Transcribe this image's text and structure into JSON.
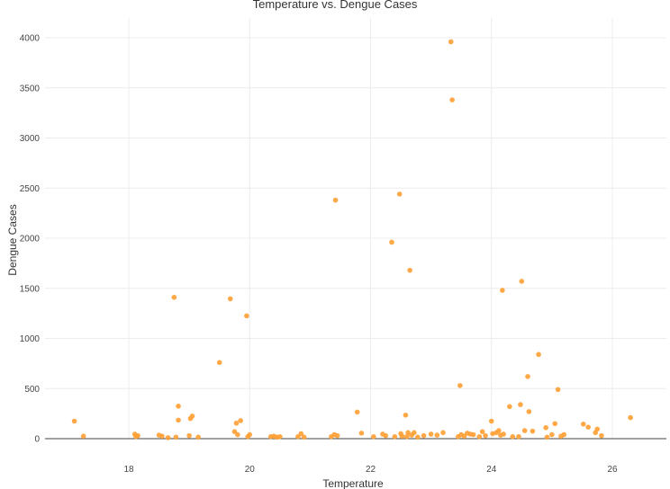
{
  "chart_data": {
    "type": "scatter",
    "title": "Temperature vs. Dengue Cases",
    "xlabel": "Temperature",
    "ylabel": "Dengue Cases",
    "xlim": [
      16.9,
      26.9
    ],
    "ylim": [
      0,
      4100
    ],
    "x_ticks": [
      18,
      20,
      22,
      24,
      26
    ],
    "y_ticks": [
      0,
      500,
      1000,
      1500,
      2000,
      2500,
      3000,
      3500,
      4000
    ],
    "grid": true,
    "legend": "none",
    "marker_color": "#ff9f33",
    "points": [
      {
        "x": 17.1,
        "y": 175
      },
      {
        "x": 17.25,
        "y": 25
      },
      {
        "x": 18.1,
        "y": 45
      },
      {
        "x": 18.12,
        "y": 20
      },
      {
        "x": 18.15,
        "y": 30
      },
      {
        "x": 18.5,
        "y": 35
      },
      {
        "x": 18.55,
        "y": 25
      },
      {
        "x": 18.65,
        "y": 10
      },
      {
        "x": 18.75,
        "y": 1410
      },
      {
        "x": 18.78,
        "y": 15
      },
      {
        "x": 18.82,
        "y": 325
      },
      {
        "x": 18.82,
        "y": 185
      },
      {
        "x": 19.0,
        "y": 30
      },
      {
        "x": 19.02,
        "y": 200
      },
      {
        "x": 19.05,
        "y": 225
      },
      {
        "x": 19.15,
        "y": 15
      },
      {
        "x": 19.5,
        "y": 760
      },
      {
        "x": 19.68,
        "y": 1395
      },
      {
        "x": 19.75,
        "y": 70
      },
      {
        "x": 19.78,
        "y": 155
      },
      {
        "x": 19.8,
        "y": 40
      },
      {
        "x": 19.85,
        "y": 180
      },
      {
        "x": 19.95,
        "y": 1225
      },
      {
        "x": 19.97,
        "y": 20
      },
      {
        "x": 20.0,
        "y": 40
      },
      {
        "x": 20.35,
        "y": 20
      },
      {
        "x": 20.4,
        "y": 25
      },
      {
        "x": 20.45,
        "y": 15
      },
      {
        "x": 20.5,
        "y": 20
      },
      {
        "x": 20.8,
        "y": 20
      },
      {
        "x": 20.85,
        "y": 50
      },
      {
        "x": 20.9,
        "y": 15
      },
      {
        "x": 21.35,
        "y": 20
      },
      {
        "x": 21.4,
        "y": 40
      },
      {
        "x": 21.42,
        "y": 2380
      },
      {
        "x": 21.45,
        "y": 30
      },
      {
        "x": 21.78,
        "y": 265
      },
      {
        "x": 21.85,
        "y": 55
      },
      {
        "x": 22.05,
        "y": 20
      },
      {
        "x": 22.2,
        "y": 45
      },
      {
        "x": 22.25,
        "y": 30
      },
      {
        "x": 22.35,
        "y": 1960
      },
      {
        "x": 22.4,
        "y": 20
      },
      {
        "x": 22.48,
        "y": 2440
      },
      {
        "x": 22.5,
        "y": 50
      },
      {
        "x": 22.52,
        "y": 25
      },
      {
        "x": 22.58,
        "y": 235
      },
      {
        "x": 22.6,
        "y": 20
      },
      {
        "x": 22.62,
        "y": 60
      },
      {
        "x": 22.65,
        "y": 1680
      },
      {
        "x": 22.68,
        "y": 35
      },
      {
        "x": 22.72,
        "y": 60
      },
      {
        "x": 22.78,
        "y": 15
      },
      {
        "x": 22.88,
        "y": 30
      },
      {
        "x": 23.0,
        "y": 45
      },
      {
        "x": 23.1,
        "y": 35
      },
      {
        "x": 23.2,
        "y": 60
      },
      {
        "x": 23.33,
        "y": 3960
      },
      {
        "x": 23.35,
        "y": 3380
      },
      {
        "x": 23.45,
        "y": 20
      },
      {
        "x": 23.48,
        "y": 530
      },
      {
        "x": 23.5,
        "y": 40
      },
      {
        "x": 23.55,
        "y": 25
      },
      {
        "x": 23.6,
        "y": 55
      },
      {
        "x": 23.65,
        "y": 45
      },
      {
        "x": 23.7,
        "y": 40
      },
      {
        "x": 23.8,
        "y": 20
      },
      {
        "x": 23.85,
        "y": 70
      },
      {
        "x": 23.9,
        "y": 30
      },
      {
        "x": 24.0,
        "y": 175
      },
      {
        "x": 24.02,
        "y": 50
      },
      {
        "x": 24.08,
        "y": 60
      },
      {
        "x": 24.12,
        "y": 80
      },
      {
        "x": 24.15,
        "y": 35
      },
      {
        "x": 24.18,
        "y": 1480
      },
      {
        "x": 24.2,
        "y": 45
      },
      {
        "x": 24.3,
        "y": 320
      },
      {
        "x": 24.35,
        "y": 20
      },
      {
        "x": 24.45,
        "y": 20
      },
      {
        "x": 24.48,
        "y": 340
      },
      {
        "x": 24.5,
        "y": 1570
      },
      {
        "x": 24.55,
        "y": 80
      },
      {
        "x": 24.6,
        "y": 620
      },
      {
        "x": 24.62,
        "y": 270
      },
      {
        "x": 24.68,
        "y": 75
      },
      {
        "x": 24.78,
        "y": 840
      },
      {
        "x": 24.9,
        "y": 110
      },
      {
        "x": 24.92,
        "y": 15
      },
      {
        "x": 25.0,
        "y": 40
      },
      {
        "x": 25.05,
        "y": 150
      },
      {
        "x": 25.1,
        "y": 490
      },
      {
        "x": 25.15,
        "y": 25
      },
      {
        "x": 25.2,
        "y": 40
      },
      {
        "x": 25.52,
        "y": 145
      },
      {
        "x": 25.6,
        "y": 115
      },
      {
        "x": 25.72,
        "y": 60
      },
      {
        "x": 25.75,
        "y": 95
      },
      {
        "x": 25.82,
        "y": 30
      },
      {
        "x": 26.3,
        "y": 210
      }
    ]
  }
}
